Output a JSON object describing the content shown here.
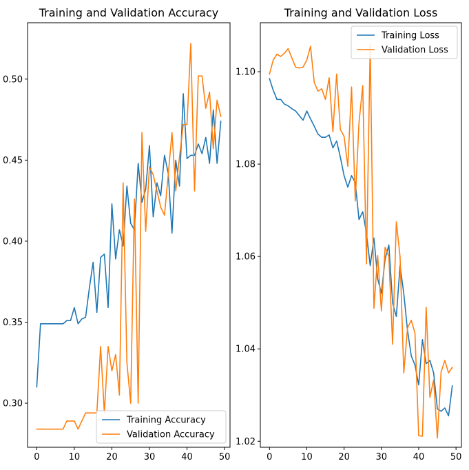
{
  "colors": {
    "training": "#1f77b4",
    "validation": "#ff7f0e"
  },
  "chart_data": [
    {
      "type": "line",
      "title": "Training and Validation Accuracy",
      "xlim": [
        -2.45,
        51.45
      ],
      "ylim": [
        0.2728,
        0.5348
      ],
      "xticks": [
        0,
        10,
        20,
        30,
        40,
        50
      ],
      "yticks": [
        0.3,
        0.35,
        0.4,
        0.45,
        0.5
      ],
      "ytick_labels": [
        "0.30",
        "0.35",
        "0.40",
        "0.45",
        "0.50"
      ],
      "legend_position": "lower-right",
      "x": [
        0,
        1,
        2,
        3,
        4,
        5,
        6,
        7,
        8,
        9,
        10,
        11,
        12,
        13,
        14,
        15,
        16,
        17,
        18,
        19,
        20,
        21,
        22,
        23,
        24,
        25,
        26,
        27,
        28,
        29,
        30,
        31,
        32,
        33,
        34,
        35,
        36,
        37,
        38,
        39,
        40,
        41,
        42,
        43,
        44,
        45,
        46,
        47,
        48,
        49
      ],
      "series": [
        {
          "name": "Training Accuracy",
          "color_key": "training",
          "values": [
            0.31,
            0.349,
            0.349,
            0.349,
            0.349,
            0.349,
            0.349,
            0.349,
            0.351,
            0.351,
            0.359,
            0.349,
            0.352,
            0.353,
            0.371,
            0.387,
            0.356,
            0.39,
            0.392,
            0.359,
            0.423,
            0.389,
            0.407,
            0.397,
            0.434,
            0.411,
            0.407,
            0.448,
            0.424,
            0.432,
            0.459,
            0.415,
            0.436,
            0.428,
            0.453,
            0.442,
            0.405,
            0.45,
            0.434,
            0.491,
            0.451,
            0.453,
            0.453,
            0.46,
            0.454,
            0.464,
            0.448,
            0.481,
            0.448,
            0.474
          ]
        },
        {
          "name": "Validation Accuracy",
          "color_key": "validation",
          "values": [
            0.284,
            0.284,
            0.284,
            0.284,
            0.284,
            0.284,
            0.284,
            0.284,
            0.289,
            0.289,
            0.289,
            0.284,
            0.289,
            0.294,
            0.294,
            0.294,
            0.294,
            0.335,
            0.294,
            0.335,
            0.32,
            0.33,
            0.305,
            0.436,
            0.325,
            0.3,
            0.426,
            0.3,
            0.467,
            0.406,
            0.446,
            0.441,
            0.431,
            0.421,
            0.416,
            0.441,
            0.467,
            0.431,
            0.452,
            0.472,
            0.472,
            0.522,
            0.431,
            0.502,
            0.502,
            0.482,
            0.492,
            0.457,
            0.487,
            0.477
          ]
        }
      ]
    },
    {
      "type": "line",
      "title": "Training and Validation Loss",
      "xlim": [
        -2.45,
        51.45
      ],
      "ylim": [
        1.0187,
        1.1106
      ],
      "xticks": [
        0,
        10,
        20,
        30,
        40,
        50
      ],
      "yticks": [
        1.02,
        1.04,
        1.06,
        1.08,
        1.1
      ],
      "ytick_labels": [
        "1.02",
        "1.04",
        "1.06",
        "1.08",
        "1.10"
      ],
      "legend_position": "upper-right",
      "x": [
        0,
        1,
        2,
        3,
        4,
        5,
        6,
        7,
        8,
        9,
        10,
        11,
        12,
        13,
        14,
        15,
        16,
        17,
        18,
        19,
        20,
        21,
        22,
        23,
        24,
        25,
        26,
        27,
        28,
        29,
        30,
        31,
        32,
        33,
        34,
        35,
        36,
        37,
        38,
        39,
        40,
        41,
        42,
        43,
        44,
        45,
        46,
        47,
        48,
        49
      ],
      "series": [
        {
          "name": "Training Loss",
          "color_key": "training",
          "values": [
            1.0985,
            1.096,
            1.094,
            1.094,
            1.093,
            1.0926,
            1.092,
            1.0915,
            1.0905,
            1.0895,
            1.0915,
            1.0898,
            1.0882,
            1.0865,
            1.0858,
            1.0858,
            1.0863,
            1.0835,
            1.085,
            1.0815,
            1.0775,
            1.075,
            1.0775,
            1.076,
            1.068,
            1.0697,
            1.065,
            1.058,
            1.064,
            1.0552,
            1.052,
            1.0595,
            1.0625,
            1.05,
            1.047,
            1.058,
            1.052,
            1.044,
            1.0385,
            1.0365,
            1.0322,
            1.042,
            1.0368,
            1.0375,
            1.0348,
            1.027,
            1.0265,
            1.0272,
            1.0255,
            1.032
          ]
        },
        {
          "name": "Validation Loss",
          "color_key": "validation",
          "values": [
            1.0995,
            1.1025,
            1.1038,
            1.1033,
            1.104,
            1.105,
            1.103,
            1.101,
            1.1008,
            1.101,
            1.1025,
            1.1055,
            1.0977,
            1.0958,
            1.0963,
            1.094,
            1.0987,
            1.087,
            1.0995,
            1.0875,
            1.086,
            1.0795,
            1.0967,
            1.072,
            1.089,
            1.097,
            1.0584,
            1.106,
            1.0488,
            1.0602,
            1.0482,
            1.062,
            1.06,
            1.041,
            1.0675,
            1.06,
            1.0348,
            1.0445,
            1.0462,
            1.0434,
            1.0212,
            1.0211,
            1.049,
            1.0295,
            1.0333,
            1.0207,
            1.035,
            1.0375,
            1.0348,
            1.036
          ]
        }
      ]
    }
  ]
}
